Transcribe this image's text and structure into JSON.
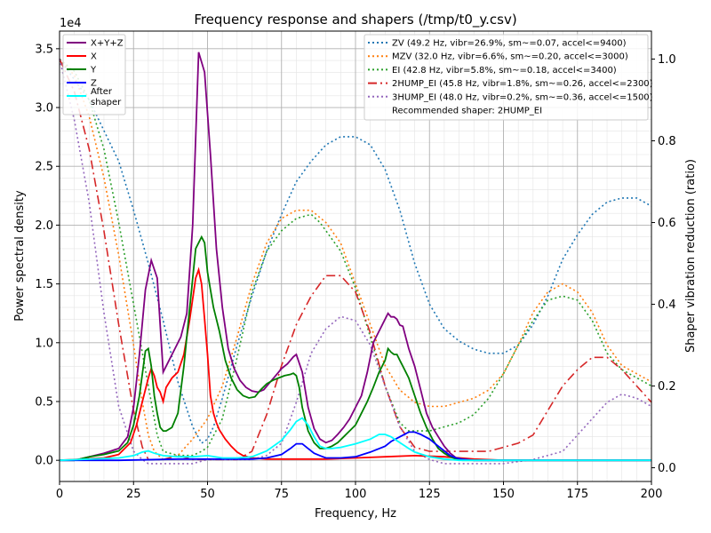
{
  "chart_data": {
    "type": "line",
    "title": "Frequency response and shapers (/tmp/t0_y.csv)",
    "xlabel": "Frequency, Hz",
    "ylabel": "Power spectral density",
    "y2label": "Shaper vibration reduction (ratio)",
    "xlim": [
      0,
      200
    ],
    "ylim": [
      -0.18,
      3.65
    ],
    "y2lim": [
      -0.0336,
      1.0685
    ],
    "y_scale_label": "1e4",
    "x_ticks": [
      0,
      25,
      50,
      75,
      100,
      125,
      150,
      175,
      200
    ],
    "y_ticks": [
      0,
      0.5,
      1.0,
      1.5,
      2.0,
      2.5,
      3.0,
      3.5
    ],
    "y_tick_labels": [
      "0.0",
      "0.5",
      "1.0",
      "1.5",
      "2.0",
      "2.5",
      "3.0",
      "3.5"
    ],
    "y2_ticks": [
      0,
      0.2,
      0.4,
      0.6,
      0.8,
      1.0
    ],
    "y2_tick_labels": [
      "0.0",
      "0.2",
      "0.4",
      "0.6",
      "0.8",
      "1.0"
    ],
    "grid": true,
    "psd_series": [
      {
        "name": "X+Y+Z",
        "color": "#800080",
        "style": "solid",
        "x": [
          0,
          5,
          10,
          15,
          20,
          23,
          25,
          27,
          29,
          31,
          33,
          35,
          37,
          39,
          41,
          43,
          45,
          47,
          49,
          51,
          53,
          55,
          57,
          59,
          61,
          63,
          65,
          67,
          69,
          71,
          73,
          75,
          77,
          79,
          80,
          82,
          84,
          86,
          88,
          90,
          92,
          94,
          96,
          98,
          100,
          102,
          104,
          106,
          108,
          110,
          111,
          112,
          113,
          114,
          115,
          116,
          118,
          120,
          122,
          124,
          126,
          128,
          130,
          132,
          134,
          136,
          140,
          150,
          160,
          170,
          180,
          190,
          200
        ],
        "y": [
          0,
          0,
          0.03,
          0.06,
          0.1,
          0.2,
          0.45,
          0.9,
          1.45,
          1.7,
          1.55,
          0.75,
          0.85,
          0.95,
          1.05,
          1.25,
          2.0,
          3.47,
          3.3,
          2.6,
          1.8,
          1.3,
          0.95,
          0.78,
          0.68,
          0.62,
          0.59,
          0.58,
          0.6,
          0.66,
          0.72,
          0.78,
          0.82,
          0.88,
          0.9,
          0.75,
          0.45,
          0.27,
          0.18,
          0.15,
          0.17,
          0.22,
          0.28,
          0.35,
          0.45,
          0.55,
          0.75,
          1.0,
          1.1,
          1.2,
          1.25,
          1.22,
          1.22,
          1.2,
          1.15,
          1.14,
          0.95,
          0.8,
          0.6,
          0.4,
          0.28,
          0.2,
          0.12,
          0.06,
          0.02,
          0.01,
          0,
          0,
          0,
          0,
          0,
          0,
          0
        ]
      },
      {
        "name": "X",
        "color": "#ff0000",
        "style": "solid",
        "x": [
          0,
          15,
          20,
          24,
          26,
          28,
          30,
          31,
          32,
          33,
          34,
          35,
          36,
          38,
          40,
          42,
          44,
          46,
          47,
          48,
          49,
          50,
          51,
          52,
          53,
          54,
          56,
          58,
          60,
          62,
          65,
          70,
          75,
          80,
          90,
          100,
          110,
          120,
          130,
          140,
          150,
          200
        ],
        "y": [
          0,
          0.02,
          0.05,
          0.15,
          0.3,
          0.5,
          0.7,
          0.78,
          0.72,
          0.62,
          0.58,
          0.5,
          0.62,
          0.7,
          0.75,
          0.9,
          1.2,
          1.55,
          1.62,
          1.5,
          1.2,
          0.9,
          0.55,
          0.4,
          0.32,
          0.26,
          0.18,
          0.12,
          0.07,
          0.04,
          0.02,
          0.01,
          0.01,
          0.01,
          0.01,
          0.02,
          0.03,
          0.04,
          0.03,
          0.01,
          0,
          0
        ]
      },
      {
        "name": "Y",
        "color": "#008000",
        "style": "solid",
        "x": [
          0,
          5,
          10,
          15,
          20,
          23,
          25,
          27,
          29,
          30,
          31,
          32,
          33,
          34,
          35,
          36,
          38,
          40,
          42,
          44,
          46,
          47,
          48,
          49,
          50,
          51,
          52,
          53,
          54,
          56,
          58,
          60,
          62,
          64,
          66,
          68,
          70,
          72,
          74,
          76,
          78,
          79,
          80,
          81,
          82,
          84,
          86,
          88,
          90,
          92,
          94,
          96,
          98,
          100,
          102,
          104,
          106,
          108,
          110,
          111,
          112,
          113,
          114,
          115,
          116,
          118,
          120,
          122,
          124,
          126,
          128,
          130,
          132,
          134,
          136,
          140,
          150,
          200
        ],
        "y": [
          0,
          0,
          0.03,
          0.05,
          0.08,
          0.15,
          0.3,
          0.55,
          0.93,
          0.95,
          0.8,
          0.55,
          0.4,
          0.28,
          0.25,
          0.25,
          0.28,
          0.4,
          0.8,
          1.3,
          1.8,
          1.85,
          1.9,
          1.85,
          1.6,
          1.45,
          1.3,
          1.2,
          1.1,
          0.85,
          0.7,
          0.6,
          0.55,
          0.53,
          0.54,
          0.6,
          0.65,
          0.68,
          0.7,
          0.72,
          0.73,
          0.74,
          0.72,
          0.62,
          0.45,
          0.25,
          0.15,
          0.1,
          0.1,
          0.12,
          0.15,
          0.2,
          0.25,
          0.3,
          0.4,
          0.5,
          0.62,
          0.75,
          0.85,
          0.95,
          0.92,
          0.9,
          0.9,
          0.85,
          0.8,
          0.7,
          0.55,
          0.4,
          0.28,
          0.18,
          0.1,
          0.06,
          0.03,
          0.01,
          0,
          0,
          0,
          0
        ]
      },
      {
        "name": "Z",
        "color": "#0000ff",
        "style": "solid",
        "x": [
          0,
          20,
          40,
          50,
          55,
          60,
          65,
          70,
          75,
          78,
          80,
          82,
          84,
          86,
          88,
          90,
          92,
          95,
          100,
          105,
          110,
          112,
          115,
          118,
          120,
          122,
          125,
          128,
          130,
          132,
          134,
          136,
          140,
          150,
          200
        ],
        "y": [
          0,
          0,
          0.01,
          0.01,
          0.01,
          0.01,
          0.01,
          0.02,
          0.05,
          0.1,
          0.14,
          0.14,
          0.1,
          0.06,
          0.04,
          0.02,
          0.02,
          0.02,
          0.03,
          0.07,
          0.12,
          0.16,
          0.2,
          0.24,
          0.24,
          0.22,
          0.18,
          0.12,
          0.08,
          0.04,
          0.02,
          0.01,
          0,
          0,
          0
        ]
      },
      {
        "name": "After\nshaper",
        "color": "#00ffff",
        "style": "solid",
        "x": [
          0,
          10,
          20,
          25,
          28,
          30,
          32,
          35,
          40,
          45,
          50,
          55,
          60,
          65,
          70,
          75,
          78,
          80,
          82,
          84,
          86,
          88,
          90,
          92,
          95,
          100,
          105,
          108,
          110,
          112,
          115,
          118,
          120,
          125,
          130,
          135,
          140,
          150,
          200
        ],
        "y": [
          0,
          0.01,
          0.02,
          0.04,
          0.07,
          0.08,
          0.06,
          0.04,
          0.03,
          0.03,
          0.04,
          0.02,
          0.02,
          0.03,
          0.08,
          0.17,
          0.26,
          0.33,
          0.36,
          0.3,
          0.2,
          0.12,
          0.1,
          0.1,
          0.11,
          0.14,
          0.18,
          0.22,
          0.22,
          0.2,
          0.15,
          0.1,
          0.07,
          0.03,
          0.01,
          0,
          0,
          0,
          0
        ]
      }
    ],
    "shaper_series": [
      {
        "name": "ZV (49.2 Hz, vibr=26.9%, sm~=0.07, accel<=9400)",
        "color": "#1f77b4",
        "style": "dotted",
        "x": [
          0,
          10,
          20,
          25,
          30,
          35,
          40,
          45,
          48,
          50,
          52,
          55,
          60,
          65,
          70,
          75,
          80,
          85,
          90,
          95,
          100,
          105,
          110,
          115,
          120,
          125,
          130,
          135,
          140,
          145,
          150,
          155,
          160,
          165,
          170,
          175,
          180,
          185,
          190,
          195,
          200
        ],
        "y": [
          1.0,
          0.9,
          0.75,
          0.63,
          0.5,
          0.36,
          0.21,
          0.1,
          0.06,
          0.07,
          0.1,
          0.17,
          0.3,
          0.42,
          0.53,
          0.62,
          0.7,
          0.75,
          0.79,
          0.81,
          0.81,
          0.79,
          0.73,
          0.63,
          0.5,
          0.4,
          0.34,
          0.31,
          0.29,
          0.28,
          0.28,
          0.3,
          0.35,
          0.42,
          0.51,
          0.57,
          0.62,
          0.65,
          0.66,
          0.66,
          0.64
        ]
      },
      {
        "name": "MZV (32.0 Hz, vibr=6.6%, sm~=0.20, accel<=3000)",
        "color": "#ff7f0e",
        "style": "dotted",
        "x": [
          0,
          5,
          10,
          15,
          20,
          25,
          28,
          30,
          32,
          35,
          40,
          45,
          50,
          55,
          60,
          65,
          70,
          75,
          80,
          85,
          90,
          95,
          100,
          105,
          110,
          115,
          120,
          125,
          130,
          135,
          140,
          145,
          150,
          155,
          160,
          165,
          170,
          175,
          180,
          185,
          190,
          195,
          200
        ],
        "y": [
          1.0,
          0.96,
          0.86,
          0.71,
          0.52,
          0.3,
          0.16,
          0.08,
          0.04,
          0.02,
          0.03,
          0.07,
          0.12,
          0.2,
          0.32,
          0.45,
          0.55,
          0.61,
          0.63,
          0.63,
          0.6,
          0.55,
          0.45,
          0.35,
          0.25,
          0.19,
          0.16,
          0.15,
          0.15,
          0.16,
          0.17,
          0.19,
          0.23,
          0.3,
          0.38,
          0.43,
          0.45,
          0.43,
          0.38,
          0.3,
          0.25,
          0.23,
          0.21
        ]
      },
      {
        "name": "EI (42.8 Hz, vibr=5.8%, sm~=0.18, accel<=3400)",
        "color": "#2ca02c",
        "style": "dotted",
        "x": [
          0,
          5,
          10,
          15,
          20,
          25,
          30,
          33,
          35,
          40,
          45,
          48,
          50,
          55,
          60,
          65,
          70,
          75,
          80,
          85,
          88,
          90,
          95,
          100,
          105,
          110,
          115,
          118,
          120,
          125,
          130,
          135,
          140,
          145,
          150,
          155,
          160,
          165,
          170,
          175,
          180,
          185,
          190,
          195,
          200
        ],
        "y": [
          1.0,
          0.97,
          0.9,
          0.78,
          0.6,
          0.4,
          0.2,
          0.08,
          0.04,
          0.03,
          0.03,
          0.04,
          0.05,
          0.12,
          0.27,
          0.43,
          0.53,
          0.58,
          0.61,
          0.62,
          0.6,
          0.58,
          0.53,
          0.44,
          0.32,
          0.2,
          0.11,
          0.09,
          0.09,
          0.09,
          0.1,
          0.11,
          0.13,
          0.17,
          0.23,
          0.3,
          0.36,
          0.41,
          0.42,
          0.41,
          0.36,
          0.28,
          0.24,
          0.22,
          0.2
        ]
      },
      {
        "name": "2HUMP_EI (45.8 Hz, vibr=1.8%, sm~=0.26, accel<=2300)",
        "color": "#d62728",
        "style": "dashdot",
        "x": [
          0,
          5,
          10,
          15,
          20,
          25,
          28,
          30,
          35,
          40,
          45,
          50,
          55,
          60,
          65,
          70,
          75,
          80,
          85,
          90,
          95,
          100,
          105,
          110,
          115,
          120,
          125,
          130,
          135,
          140,
          145,
          150,
          155,
          160,
          165,
          170,
          175,
          180,
          185,
          190,
          195,
          200
        ],
        "y": [
          1.0,
          0.92,
          0.78,
          0.58,
          0.35,
          0.14,
          0.05,
          0.02,
          0.02,
          0.03,
          0.02,
          0.02,
          0.02,
          0.02,
          0.04,
          0.13,
          0.25,
          0.35,
          0.42,
          0.47,
          0.47,
          0.43,
          0.33,
          0.2,
          0.1,
          0.05,
          0.04,
          0.04,
          0.04,
          0.04,
          0.04,
          0.05,
          0.06,
          0.08,
          0.14,
          0.2,
          0.24,
          0.27,
          0.27,
          0.24,
          0.2,
          0.16
        ]
      },
      {
        "name": "3HUMP_EI (48.0 Hz, vibr=0.2%, sm~=0.36, accel<=1500)",
        "color": "#9467bd",
        "style": "dotted",
        "x": [
          0,
          5,
          10,
          15,
          20,
          25,
          28,
          30,
          35,
          40,
          45,
          50,
          55,
          60,
          65,
          70,
          75,
          80,
          85,
          90,
          95,
          100,
          105,
          110,
          115,
          120,
          125,
          130,
          140,
          150,
          160,
          165,
          170,
          175,
          180,
          185,
          190,
          195,
          200
        ],
        "y": [
          1.0,
          0.85,
          0.65,
          0.38,
          0.15,
          0.04,
          0.02,
          0.01,
          0.01,
          0.01,
          0.01,
          0.02,
          0.02,
          0.02,
          0.02,
          0.03,
          0.06,
          0.16,
          0.28,
          0.34,
          0.37,
          0.36,
          0.3,
          0.2,
          0.1,
          0.04,
          0.02,
          0.01,
          0.01,
          0.01,
          0.02,
          0.03,
          0.04,
          0.08,
          0.12,
          0.16,
          0.18,
          0.17,
          0.15
        ]
      }
    ],
    "legend_left": {
      "location": "upper-left"
    },
    "legend_right": {
      "location": "upper-right",
      "note": "Recommended shaper: 2HUMP_EI"
    }
  }
}
